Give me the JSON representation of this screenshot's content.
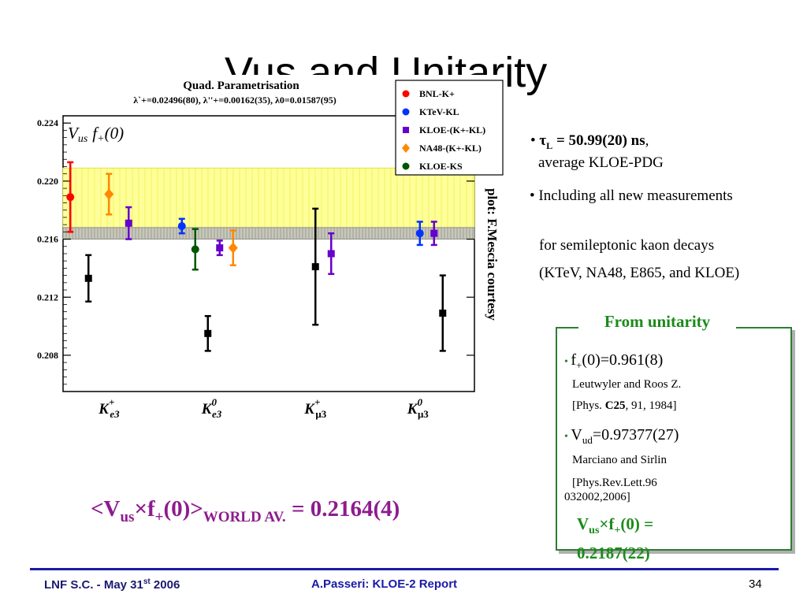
{
  "slide": {
    "title": "Vus and Unitarity",
    "credit": "plot: F.Mescia courtesy"
  },
  "plot": {
    "header_title": "Quad. Parametrisation",
    "header_params": "λ`+=0.02496(80), λ''+=0.00162(35), λ0=0.01587(95)",
    "ylabel": "Vus f+(0)",
    "colors": {
      "band": "#ffff99",
      "band_edge": "#e0e040",
      "world_band": "#909090",
      "bnl": "#ff0000",
      "ktev": "#0033ff",
      "kloe": "#6600cc",
      "na48": "#ff8800",
      "kloe_s": "#005500",
      "black": "#000000"
    }
  },
  "chart_data": {
    "type": "scatter",
    "title": "Quad. Parametrisation",
    "subtitle": "λ`+=0.02496(80), λ''+=0.00162(35), λ0=0.01587(95)",
    "ylabel": "Vus f+(0)",
    "ylim": [
      0.2055,
      0.2245
    ],
    "yticks": [
      0.208,
      0.212,
      0.216,
      0.22,
      0.224
    ],
    "ytick_labels": [
      "0.208",
      "0.212",
      "0.216",
      "0.220",
      "0.224"
    ],
    "categories": [
      "K+e3",
      "K0e3",
      "K+μ3",
      "K0μ3"
    ],
    "unitarity_band": [
      0.2165,
      0.2209
    ],
    "world_average_band": [
      0.216,
      0.2168
    ],
    "legend": [
      {
        "label": "BNL-K+",
        "color": "#ff0000",
        "marker": "circle"
      },
      {
        "label": "KTeV-KL",
        "color": "#0033ff",
        "marker": "circle"
      },
      {
        "label": "KLOE-(K+-KL)",
        "color": "#6600cc",
        "marker": "square"
      },
      {
        "label": "NA48-(K+-KL)",
        "color": "#ff8800",
        "marker": "diamond"
      },
      {
        "label": "KLOE-KS",
        "color": "#005500",
        "marker": "circle"
      }
    ],
    "legend_position": "top-right",
    "points": [
      {
        "category": "K+e3",
        "series": "BNL-K+",
        "color": "#ff0000",
        "marker": "circle",
        "y": 0.2189,
        "err": 0.0024
      },
      {
        "category": "K+e3",
        "series": "black",
        "color": "#000000",
        "marker": "square",
        "y": 0.2133,
        "err": 0.0016
      },
      {
        "category": "K+e3",
        "series": "NA48-(K+-KL)",
        "color": "#ff8800",
        "marker": "diamond",
        "y": 0.2191,
        "err": 0.0014
      },
      {
        "category": "K+e3",
        "series": "KLOE-(K+-KL)",
        "color": "#6600cc",
        "marker": "square",
        "y": 0.2171,
        "err": 0.0011
      },
      {
        "category": "K0e3",
        "series": "KTeV-KL",
        "color": "#0033ff",
        "marker": "circle",
        "y": 0.2169,
        "err": 0.0005
      },
      {
        "category": "K0e3",
        "series": "KLOE-KS",
        "color": "#005500",
        "marker": "circle",
        "y": 0.2153,
        "err": 0.0014
      },
      {
        "category": "K0e3",
        "series": "black",
        "color": "#000000",
        "marker": "square",
        "y": 0.2095,
        "err": 0.0012
      },
      {
        "category": "K0e3",
        "series": "KLOE-(K+-KL)",
        "color": "#6600cc",
        "marker": "square",
        "y": 0.2154,
        "err": 0.0005
      },
      {
        "category": "K0e3",
        "series": "NA48-(K+-KL)",
        "color": "#ff8800",
        "marker": "diamond",
        "y": 0.2154,
        "err": 0.0012
      },
      {
        "category": "K+μ3",
        "series": "black",
        "color": "#000000",
        "marker": "square",
        "y": 0.2141,
        "err": 0.004
      },
      {
        "category": "K+μ3",
        "series": "KLOE-(K+-KL)",
        "color": "#6600cc",
        "marker": "square",
        "y": 0.215,
        "err": 0.0014
      },
      {
        "category": "K0μ3",
        "series": "KTeV-KL",
        "color": "#0033ff",
        "marker": "circle",
        "y": 0.2164,
        "err": 0.0008
      },
      {
        "category": "K0μ3",
        "series": "KLOE-(K+-KL)",
        "color": "#6600cc",
        "marker": "square",
        "y": 0.2164,
        "err": 0.0008
      },
      {
        "category": "K0μ3",
        "series": "black",
        "color": "#000000",
        "marker": "square",
        "y": 0.2109,
        "err": 0.0026
      }
    ]
  },
  "bullets": {
    "tau": {
      "symbol": "τ",
      "sub": "L",
      "value": " = 50.99(20) ns",
      "comma": ",",
      "line2": "average KLOE-PDG"
    },
    "including_line1": "Including all new measurements",
    "including_line2": "for semileptonic kaon decays",
    "including_line3": "(KTeV, NA48, E865, and KLOE)"
  },
  "unitarity_box": {
    "title": "From unitarity",
    "f_plus": "f",
    "f_plus_sub": "+",
    "f_plus_value": "(0)=0.961(8)",
    "ref1_line1": "Leutwyler and Roos Z.",
    "ref1_pre": "[Phys. ",
    "ref1_bold": "C25",
    "ref1_post": ", 91, 1984]",
    "vud": "V",
    "vud_sub": "ud",
    "vud_value": "=0.97377(27)",
    "ref2_line1": "Marciano and Sirlin",
    "ref2_line2": "[Phys.Rev.Lett.96",
    "ref2_line3": "032002,2006]",
    "result_v": "V",
    "result_sub_us": "us",
    "result_times": "×f",
    "result_sub_plus": "+",
    "result_value": "(0) = 0.2187(22)"
  },
  "world_average": {
    "open": "<V",
    "sub_us": "us",
    "times": "×f",
    "sub_plus": "+",
    "close": "(0)>",
    "sub_label": "WORLD AV.",
    "value": " = 0.2164(4)"
  },
  "footer": {
    "left_pre": "LNF S.C. - May 31",
    "left_sup": "st",
    "left_post": " 2006",
    "center": "A.Passeri: KLOE-2 Report",
    "page": "34"
  }
}
